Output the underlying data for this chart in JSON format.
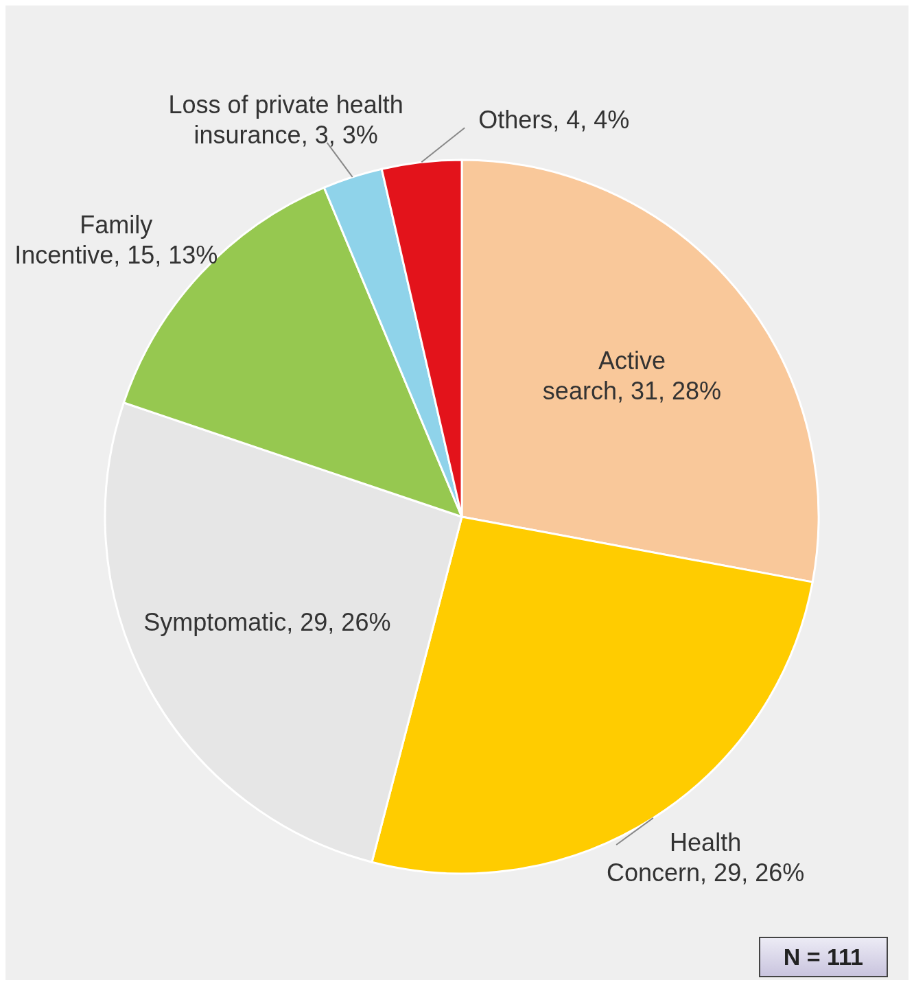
{
  "chart_data": {
    "type": "pie",
    "categories": [
      "Active search",
      "Health Concern",
      "Symptomatic",
      "Family Incentive",
      "Loss of private health insurance",
      "Others"
    ],
    "values": [
      31,
      29,
      29,
      15,
      3,
      4
    ],
    "value_labels": [
      "31, 28%",
      "29, 26%",
      "29, 26%",
      "15, 13%",
      "3, 3%",
      "4, 4%"
    ],
    "colors": [
      "#f9c89a",
      "#ffcc00",
      "#e6e6e6",
      "#96c850",
      "#8fd3ea",
      "#e3131b"
    ],
    "annotations": [
      "N = 111"
    ]
  }
}
